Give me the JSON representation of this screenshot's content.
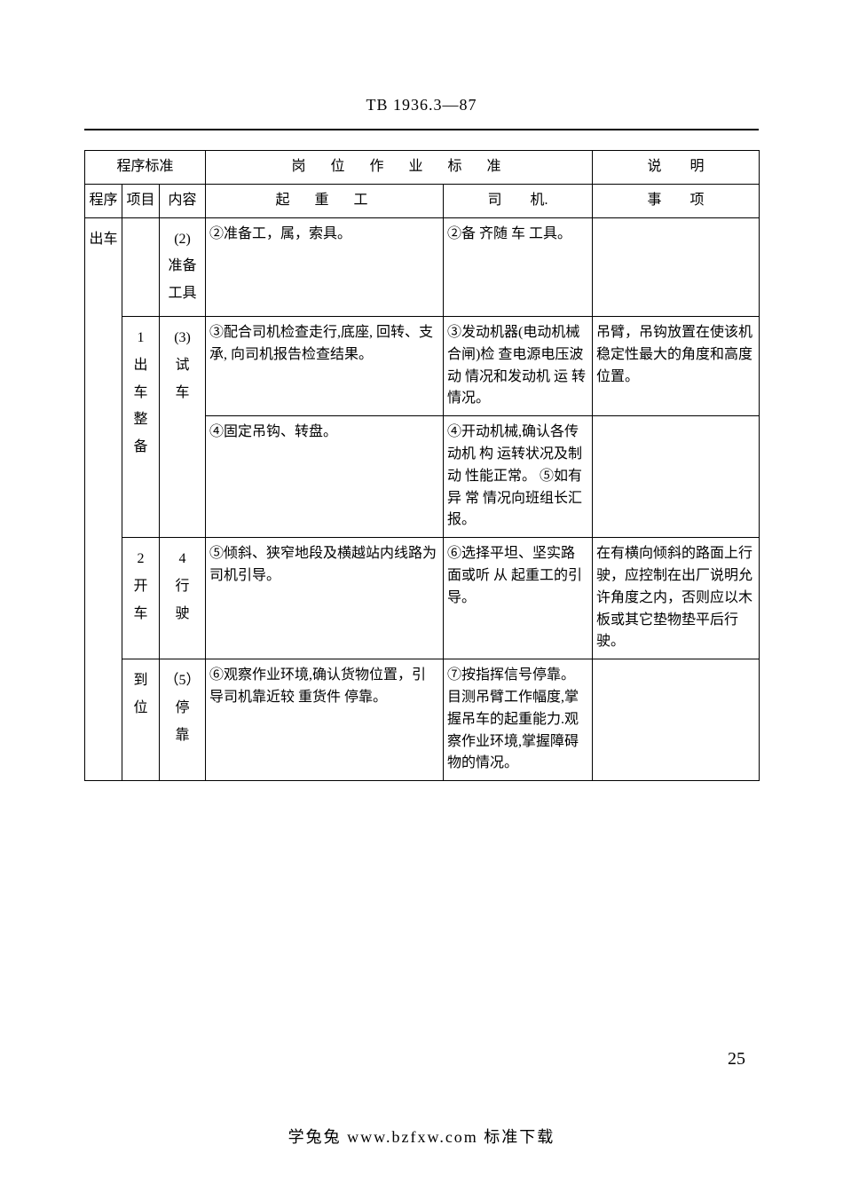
{
  "doc_code": "TB 1936.3—87",
  "page_number": "25",
  "footer_text": "学兔兔  www.bzfxw.com  标准下载",
  "table": {
    "headers": {
      "h_procedure_std": "程序标准",
      "h_job_std": "岗　位　作　业　标　准",
      "h_remarks": "说　　明",
      "h_cx": "程序",
      "h_xm": "项目",
      "h_nr": "内容",
      "h_qzg": "起　重　工",
      "h_sj": "司　　机.",
      "h_sx": "事　　项"
    },
    "col_cx_outer": "出车",
    "rows": [
      {
        "xm": "",
        "nr": "(2)\n准备\n工具",
        "qzg": "②准备工，属，索具。",
        "sj": "②备 齐随 车 工具。",
        "sx": ""
      },
      {
        "xm": "1\n出\n车\n整\n备",
        "nr": "(3)\n试\n车",
        "qzg_a": "③配合司机检查走行,底座, 回转、支承,  向司机报告检查结果。",
        "sj_a": "③发动机器(电动机械合闸)检 查电源电压波 动 情况和发动机 运 转情况。",
        "sx_a": "吊臂，吊钩放置在使该机稳定性最大的角度和高度位置。",
        "qzg_b": "④固定吊钩、转盘。",
        "sj_b": "④开动机械,确认各传动机 构 运转状况及制 动 性能正常。\n⑤如有异 常 情况向班组长汇报。",
        "sx_b": ""
      },
      {
        "xm": "2\n开\n车",
        "nr": "4\n行\n驶",
        "qzg": "⑤倾斜、狭窄地段及横越站内线路为司机引导。",
        "sj": "⑥选择平坦、坚实路面或听 从 起重工的引导。",
        "sx": "在有横向倾斜的路面上行驶，应控制在出厂说明允许角度之内，否则应以木板或其它垫物垫平后行驶。"
      },
      {
        "xm": "到\n位",
        "nr": "（5）\n停\n靠",
        "qzg": "⑥观察作业环境,确认货物位置，引导司机靠近较 重货件 停靠。",
        "sj": "⑦按指挥信号停靠。目测吊臂工作幅度,掌握吊车的起重能力.观察作业环境,掌握障碍物的情况。",
        "sx": ""
      }
    ]
  }
}
